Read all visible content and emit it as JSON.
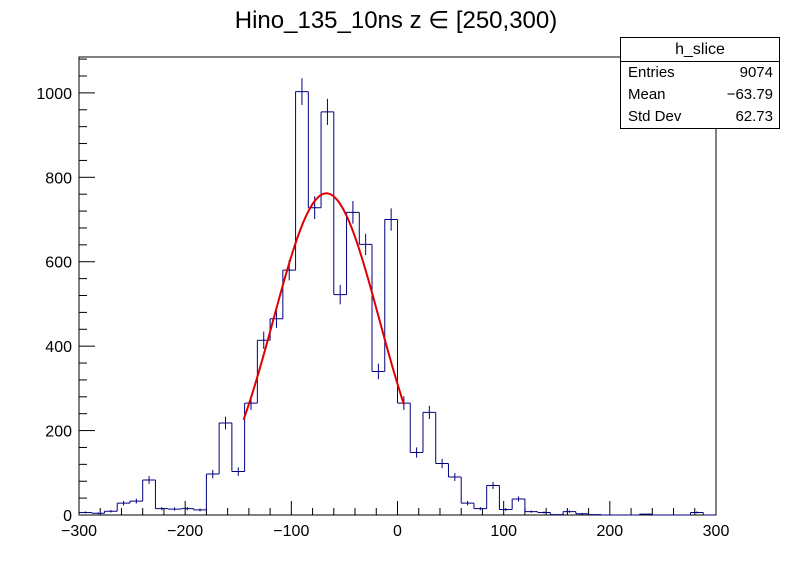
{
  "chart_data": {
    "type": "histogram",
    "title": "Hino_135_10ns z  ∈ [250,300)",
    "xlabel": "",
    "ylabel": "",
    "xlim": [
      -300,
      300
    ],
    "ylim": [
      0,
      1085
    ],
    "x_ticks": [
      -300,
      -200,
      -100,
      0,
      100,
      200,
      300
    ],
    "x_tick_labels": [
      "−300",
      "−200",
      "−100",
      "0",
      "100",
      "200",
      "300"
    ],
    "y_ticks": [
      0,
      200,
      400,
      600,
      800,
      1000
    ],
    "y_tick_labels": [
      "0",
      "200",
      "400",
      "600",
      "800",
      "1000"
    ],
    "bin_width": 12,
    "bins": [
      {
        "x": -300,
        "value": 6
      },
      {
        "x": -288,
        "value": 4
      },
      {
        "x": -276,
        "value": 9
      },
      {
        "x": -264,
        "value": 28
      },
      {
        "x": -252,
        "value": 33
      },
      {
        "x": -240,
        "value": 83
      },
      {
        "x": -228,
        "value": 15
      },
      {
        "x": -216,
        "value": 14
      },
      {
        "x": -204,
        "value": 15
      },
      {
        "x": -192,
        "value": 12
      },
      {
        "x": -180,
        "value": 97
      },
      {
        "x": -168,
        "value": 218
      },
      {
        "x": -156,
        "value": 103
      },
      {
        "x": -144,
        "value": 265
      },
      {
        "x": -132,
        "value": 414
      },
      {
        "x": -120,
        "value": 465
      },
      {
        "x": -108,
        "value": 580
      },
      {
        "x": -96,
        "value": 1003
      },
      {
        "x": -84,
        "value": 728
      },
      {
        "x": -72,
        "value": 955
      },
      {
        "x": -60,
        "value": 522
      },
      {
        "x": -48,
        "value": 717
      },
      {
        "x": -36,
        "value": 641
      },
      {
        "x": -24,
        "value": 340
      },
      {
        "x": -12,
        "value": 700
      },
      {
        "x": 0,
        "value": 265
      },
      {
        "x": 12,
        "value": 148
      },
      {
        "x": 24,
        "value": 243
      },
      {
        "x": 36,
        "value": 122
      },
      {
        "x": 48,
        "value": 90
      },
      {
        "x": 60,
        "value": 28
      },
      {
        "x": 72,
        "value": 15
      },
      {
        "x": 84,
        "value": 70
      },
      {
        "x": 96,
        "value": 13
      },
      {
        "x": 108,
        "value": 38
      },
      {
        "x": 120,
        "value": 8
      },
      {
        "x": 132,
        "value": 6
      },
      {
        "x": 144,
        "value": 1
      },
      {
        "x": 156,
        "value": 8
      },
      {
        "x": 168,
        "value": 3
      },
      {
        "x": 180,
        "value": 1
      },
      {
        "x": 192,
        "value": 0
      },
      {
        "x": 204,
        "value": 0
      },
      {
        "x": 216,
        "value": 0
      },
      {
        "x": 228,
        "value": 2
      },
      {
        "x": 240,
        "value": 0
      },
      {
        "x": 252,
        "value": 0
      },
      {
        "x": 264,
        "value": 0
      },
      {
        "x": 276,
        "value": 6
      },
      {
        "x": 288,
        "value": 0
      }
    ],
    "fit": {
      "function": "gaus",
      "constant": 762,
      "mean": -67,
      "sigma": 50,
      "range": [
        -145,
        6
      ]
    },
    "colors": {
      "histogram": "#000080",
      "fit": "#e00000",
      "axis": "#000000"
    }
  },
  "stats_box": {
    "name": "h_slice",
    "rows": [
      {
        "label": "Entries",
        "value": "9074"
      },
      {
        "label": "Mean",
        "value": "−63.79"
      },
      {
        "label": "Std Dev",
        "value": "62.73"
      }
    ]
  }
}
